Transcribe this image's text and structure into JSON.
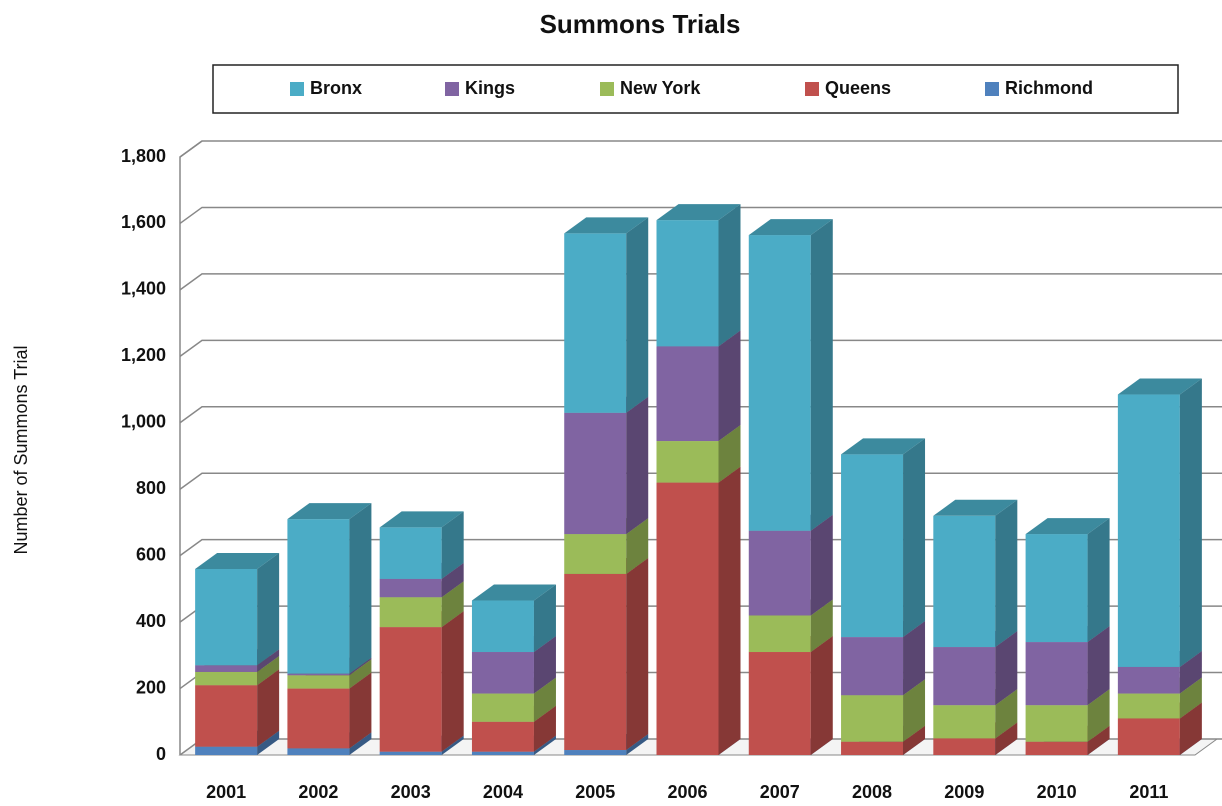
{
  "chart_data": {
    "type": "bar3d_stacked",
    "title": "Summons Trials",
    "y_label": "Number of Summons Trial",
    "categories": [
      "2001",
      "2002",
      "2003",
      "2004",
      "2005",
      "2006",
      "2007",
      "2008",
      "2009",
      "2010",
      "2011"
    ],
    "series": [
      {
        "name": "Richmond",
        "color": "#4f81bd",
        "values": [
          25,
          20,
          10,
          10,
          15,
          0,
          0,
          0,
          0,
          0,
          0
        ]
      },
      {
        "name": "Queens",
        "color": "#c0504d",
        "values": [
          185,
          180,
          375,
          90,
          530,
          820,
          310,
          40,
          50,
          40,
          110
        ]
      },
      {
        "name": "New York",
        "color": "#9bbb59",
        "values": [
          40,
          40,
          90,
          85,
          120,
          125,
          110,
          140,
          100,
          110,
          75
        ]
      },
      {
        "name": "Kings",
        "color": "#8064a2",
        "values": [
          20,
          5,
          55,
          125,
          365,
          285,
          255,
          175,
          175,
          190,
          80
        ]
      },
      {
        "name": "Bronx",
        "color": "#4bacc6",
        "values": [
          290,
          465,
          155,
          155,
          540,
          380,
          890,
          550,
          395,
          325,
          820
        ]
      }
    ],
    "legend_order": [
      "Bronx",
      "Kings",
      "New York",
      "Queens",
      "Richmond"
    ],
    "ylim": [
      0,
      1800
    ],
    "yticks": [
      0,
      200,
      400,
      600,
      800,
      {
        "value": 1000,
        "label": "1,000"
      },
      {
        "value": 1200,
        "label": "1,200"
      },
      {
        "value": 1400,
        "label": "1,400"
      },
      {
        "value": 1600,
        "label": "1,600"
      },
      {
        "value": 1800,
        "label": "1,800"
      }
    ],
    "grid": true,
    "stacked": true
  }
}
